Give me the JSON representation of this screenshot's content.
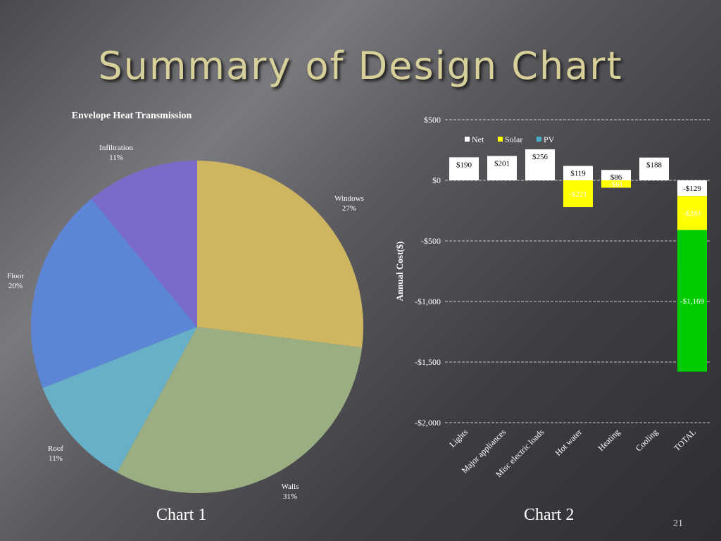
{
  "slide": {
    "title": "Summary of Design Chart",
    "caption_left": "Chart 1",
    "caption_right": "Chart 2",
    "page_number": "21"
  },
  "chart_data": [
    {
      "type": "pie",
      "title": "Envelope Heat Transmission",
      "slices": [
        {
          "label": "Windows",
          "value": 27,
          "display": "27%",
          "color": "#cdb561"
        },
        {
          "label": "Walls",
          "value": 31,
          "display": "31%",
          "color": "#9aae82"
        },
        {
          "label": "Roof",
          "value": 11,
          "display": "11%",
          "color": "#68b0c8"
        },
        {
          "label": "Floor",
          "value": 20,
          "display": "20%",
          "color": "#5c85d6"
        },
        {
          "label": "Infiltration",
          "value": 11,
          "display": "11%",
          "color": "#7a6bc9"
        }
      ]
    },
    {
      "type": "bar",
      "stacked": true,
      "ylabel": "Annual Cost($)",
      "ylim": [
        -2000,
        500
      ],
      "yticks": [
        500,
        0,
        -500,
        -1000,
        -1500,
        -2000
      ],
      "ytick_labels": [
        "$500",
        "$0",
        "-$500",
        "-$1,000",
        "-$1,500",
        "-$2,000"
      ],
      "grid": true,
      "legend_position": "top",
      "categories": [
        "Lights",
        "Major appliances",
        "Misc electric loads",
        "Hot water",
        "Heating",
        "Cooling",
        "TOTAL"
      ],
      "series": [
        {
          "name": "Net",
          "color": "#ffffff",
          "values": [
            190,
            201,
            256,
            119,
            86,
            188,
            -129
          ],
          "labels": [
            "$190",
            "$201",
            "$256",
            "$119",
            "$86",
            "$188",
            "-$129"
          ]
        },
        {
          "name": "Solar",
          "color": "#ffff00",
          "values": [
            0,
            0,
            0,
            -221,
            -61,
            0,
            -281
          ],
          "labels": [
            "",
            "",
            "",
            "-$221",
            "-$61",
            "",
            "-$281"
          ]
        },
        {
          "name": "PV",
          "color": "#4bacc6",
          "values": [
            0,
            0,
            0,
            0,
            0,
            0,
            0
          ],
          "labels": [
            "",
            "",
            "",
            "",
            "",
            "",
            ""
          ]
        }
      ],
      "extra_segments": [
        {
          "category": "TOTAL",
          "value": -1169,
          "label": "-$1,169",
          "color": "#00cc00"
        }
      ]
    }
  ]
}
